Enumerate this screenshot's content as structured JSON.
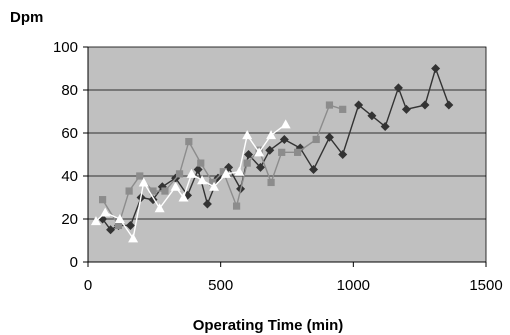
{
  "chart_data": {
    "type": "line",
    "title": "",
    "xlabel": "Operating Time (min)",
    "ylabel": "Dpm",
    "xlim": [
      0,
      1500
    ],
    "ylim": [
      0,
      100
    ],
    "x_ticks": [
      0,
      500,
      1000,
      1500
    ],
    "y_ticks": [
      0,
      20,
      40,
      60,
      80,
      100
    ],
    "grid": "horizontal",
    "legend": "none",
    "plot_background": "#c0c0c0",
    "series": [
      {
        "marker": "diamond",
        "color": "#333333",
        "x": [
          55,
          85,
          115,
          160,
          200,
          245,
          280,
          330,
          375,
          415,
          450,
          490,
          530,
          575,
          605,
          650,
          685,
          740,
          800,
          850,
          910,
          960,
          1020,
          1070,
          1120,
          1170,
          1200,
          1270,
          1310,
          1360
        ],
        "y": [
          20,
          15,
          17,
          17,
          30,
          29,
          35,
          39,
          31,
          43,
          27,
          39,
          44,
          34,
          50,
          44,
          52,
          57,
          53,
          43,
          58,
          50,
          73,
          68,
          63,
          81,
          71,
          73,
          90,
          73
        ]
      },
      {
        "marker": "square",
        "color": "#8c8c8c",
        "x": [
          55,
          115,
          155,
          195,
          245,
          290,
          345,
          380,
          425,
          470,
          510,
          560,
          600,
          645,
          690,
          730,
          790,
          860,
          910,
          960
        ],
        "y": [
          29,
          17,
          33,
          40,
          33,
          33,
          41,
          56,
          46,
          37,
          42,
          26,
          46,
          52,
          37,
          51,
          51,
          57,
          73,
          71
        ]
      },
      {
        "marker": "triangle",
        "color": "#ffffff",
        "x": [
          30,
          65,
          120,
          170,
          210,
          270,
          330,
          360,
          390,
          430,
          475,
          520,
          570,
          600,
          645,
          690,
          745
        ],
        "y": [
          19,
          23,
          20,
          11,
          37,
          25,
          35,
          30,
          41,
          38,
          35,
          41,
          42,
          59,
          51,
          59,
          64
        ]
      }
    ]
  }
}
